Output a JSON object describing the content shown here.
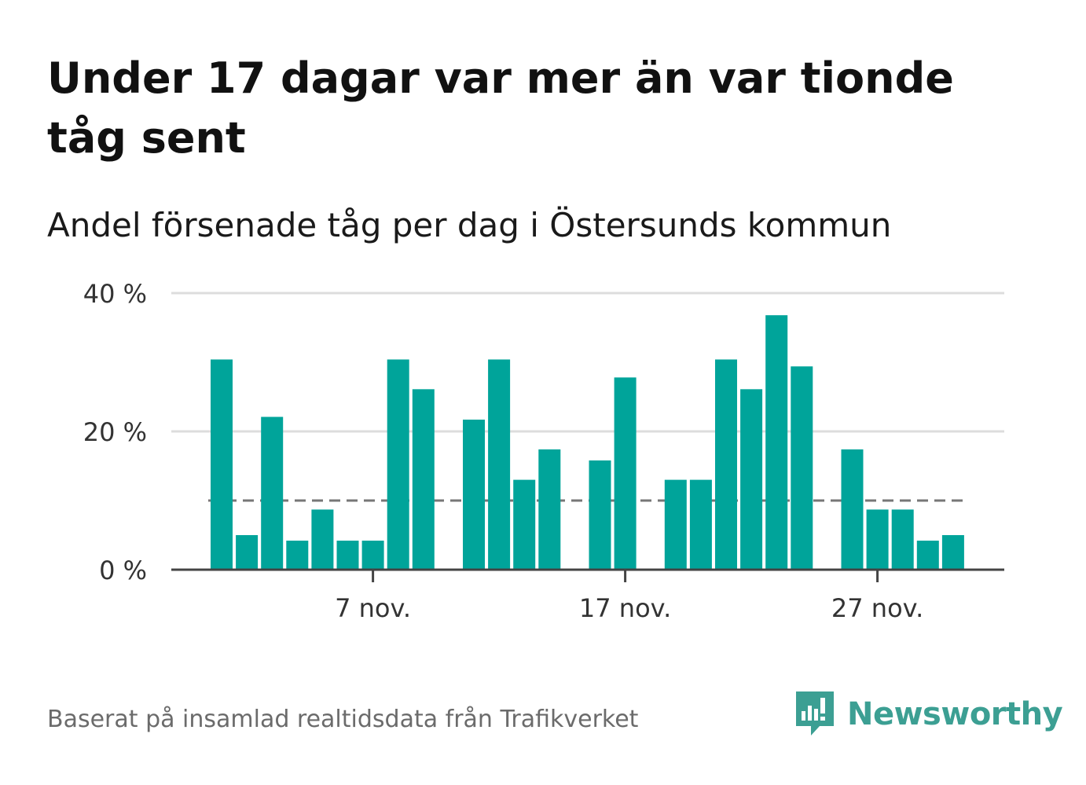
{
  "title": "Under 17 dagar var mer än var tionde tåg sent",
  "subtitle": "Andel försenade tåg per dag i Östersunds kommun",
  "source": "Baserat på insamlad realtidsdata från Trafikverket",
  "brand": {
    "name": "Newsworthy",
    "icon": "bar-chart-speech-bubble-icon"
  },
  "colors": {
    "bar": "#00a49a",
    "grid": "#dddddd",
    "axis": "#444444",
    "reference_line": "#777777",
    "brand": "#3c9f93"
  },
  "chart_data": {
    "type": "bar",
    "x": [
      "1 nov.",
      "2 nov.",
      "3 nov.",
      "4 nov.",
      "5 nov.",
      "6 nov.",
      "7 nov.",
      "8 nov.",
      "9 nov.",
      "10 nov.",
      "11 nov.",
      "12 nov.",
      "13 nov.",
      "14 nov.",
      "15 nov.",
      "16 nov.",
      "17 nov.",
      "18 nov.",
      "19 nov.",
      "20 nov.",
      "21 nov.",
      "22 nov.",
      "23 nov.",
      "24 nov.",
      "25 nov.",
      "26 nov.",
      "27 nov.",
      "28 nov.",
      "29 nov.",
      "30 nov."
    ],
    "values": [
      30.4,
      5.0,
      22.1,
      4.2,
      8.7,
      4.2,
      4.2,
      30.4,
      26.1,
      null,
      21.7,
      30.4,
      13.0,
      17.4,
      null,
      15.8,
      27.8,
      null,
      13.0,
      13.0,
      30.4,
      26.1,
      36.8,
      29.4,
      null,
      17.4,
      8.7,
      8.7,
      4.2,
      5.0
    ],
    "ylim": [
      0,
      40
    ],
    "yticks": [
      0,
      20,
      40
    ],
    "ytick_labels": [
      "0 %",
      "20 %",
      "40 %"
    ],
    "xticks": [
      "7 nov.",
      "17 nov.",
      "27 nov."
    ],
    "reference_line": 10,
    "grid": true,
    "xlabel": "",
    "ylabel": ""
  }
}
